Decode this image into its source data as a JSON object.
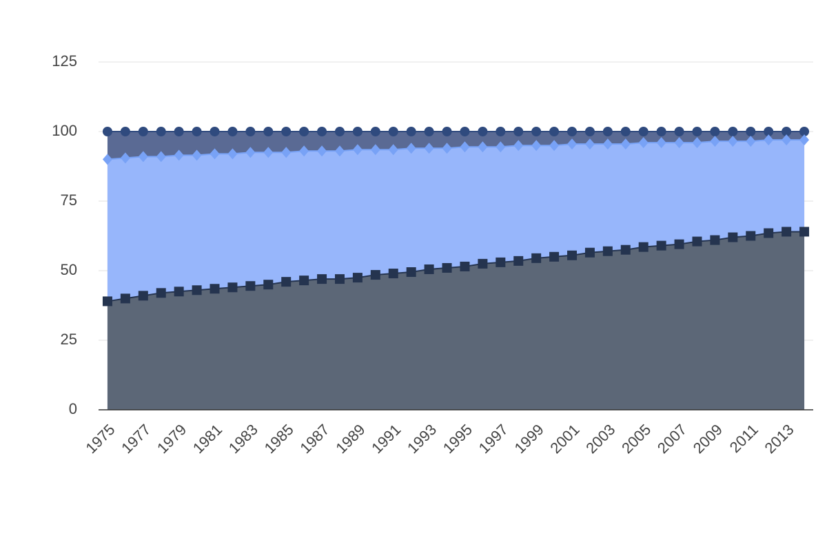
{
  "chart_data": {
    "type": "area",
    "x": [
      1975,
      1976,
      1977,
      1978,
      1979,
      1980,
      1981,
      1982,
      1983,
      1984,
      1985,
      1986,
      1987,
      1988,
      1989,
      1990,
      1991,
      1992,
      1993,
      1994,
      1995,
      1996,
      1997,
      1998,
      1999,
      2000,
      2001,
      2002,
      2003,
      2004,
      2005,
      2006,
      2007,
      2008,
      2009,
      2010,
      2011,
      2012,
      2013,
      2014
    ],
    "series": [
      {
        "color": "#2f4a7e",
        "area_color": "#5a6a94",
        "marker": "circle",
        "values": [
          100,
          100,
          100,
          100,
          100,
          100,
          100,
          100,
          100,
          100,
          100,
          100,
          100,
          100,
          100,
          100,
          100,
          100,
          100,
          100,
          100,
          100,
          100,
          100,
          100,
          100,
          100,
          100,
          100,
          100,
          100,
          100,
          100,
          100,
          100,
          100,
          100,
          100,
          100,
          100
        ]
      },
      {
        "color": "#78a2f6",
        "area_color": "#97b6fb",
        "marker": "diamond",
        "values": [
          90,
          90.5,
          91,
          91,
          91.5,
          91.5,
          92,
          92,
          92.5,
          92.5,
          92.5,
          93,
          93,
          93,
          93.5,
          93.5,
          93.5,
          94,
          94,
          94,
          94.5,
          94.5,
          94.5,
          95,
          95,
          95,
          95.5,
          95.5,
          95.5,
          95.5,
          96,
          96,
          96,
          96,
          96.5,
          96.5,
          96.5,
          97,
          97,
          97
        ]
      },
      {
        "color": "#25344f",
        "area_color": "#5c6777",
        "marker": "square",
        "values": [
          39,
          40,
          41,
          42,
          42.5,
          43,
          43.5,
          44,
          44.5,
          45,
          46,
          46.5,
          47,
          47,
          47.5,
          48.5,
          49,
          49.5,
          50.5,
          51,
          51.5,
          52.5,
          53,
          53.5,
          54.5,
          55,
          55.5,
          56.5,
          57,
          57.5,
          58.5,
          59,
          59.5,
          60.5,
          61,
          62,
          62.5,
          63.5,
          64,
          64
        ]
      }
    ],
    "xlim": [
      1974.5,
      2014.5
    ],
    "xticks": [
      1975,
      1977,
      1979,
      1981,
      1983,
      1985,
      1987,
      1989,
      1991,
      1993,
      1995,
      1997,
      1999,
      2001,
      2003,
      2005,
      2007,
      2009,
      2011,
      2013
    ],
    "ylim": [
      0,
      125
    ],
    "yticks": [
      0,
      25,
      50,
      75,
      100,
      125
    ],
    "grid": true
  }
}
